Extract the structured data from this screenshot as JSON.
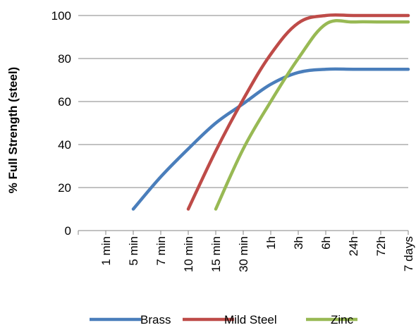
{
  "chart_data": {
    "type": "line",
    "title": "",
    "xlabel": "",
    "ylabel": "% Full Strength (steel)",
    "ylim": [
      0,
      100
    ],
    "yticks": [
      0,
      20,
      40,
      60,
      80,
      100
    ],
    "grid": "horizontal",
    "legend": "bottom",
    "categories": [
      "1 min",
      "5 min",
      "7 min",
      "10 min",
      "15 min",
      "30 min",
      "1h",
      "3h",
      "6h",
      "24h",
      "72h",
      "7 days"
    ],
    "series": [
      {
        "name": "Brass",
        "color": "#4a7ebb",
        "values": [
          null,
          10,
          25,
          38,
          50,
          59,
          68,
          73.5,
          75,
          75,
          75,
          75
        ]
      },
      {
        "name": "Mild Steel",
        "color": "#be4b48",
        "values": [
          null,
          null,
          null,
          10,
          37,
          61,
          82,
          96.5,
          100,
          100,
          100,
          100
        ]
      },
      {
        "name": "Zinc",
        "color": "#98b954",
        "values": [
          null,
          null,
          null,
          null,
          10,
          38,
          60,
          80,
          96,
          97,
          97,
          97
        ]
      }
    ]
  }
}
